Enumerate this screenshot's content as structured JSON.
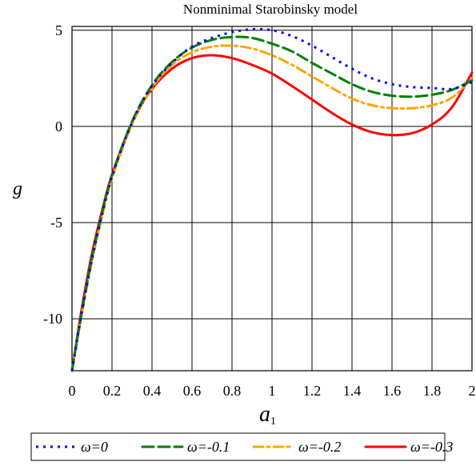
{
  "chart_data": {
    "type": "line",
    "title": "Nonminimal Starobinsky model",
    "xlabel": "a",
    "xlabel_subscript": "1",
    "ylabel": "g",
    "xlim": [
      0,
      2
    ],
    "ylim": [
      -12.7,
      5.2
    ],
    "x_ticks": [
      0,
      0.2,
      0.4,
      0.6,
      0.8,
      1,
      1.2,
      1.4,
      1.6,
      1.8,
      2
    ],
    "x_tick_labels": [
      "0",
      "0.2",
      "0.4",
      "0.6",
      "0.8",
      "1",
      "1.2",
      "1.4",
      "1.6",
      "1.8",
      "2"
    ],
    "y_ticks": [
      5,
      0,
      -5,
      -10
    ],
    "y_tick_labels": [
      "5",
      "0",
      "-5",
      "-10"
    ],
    "grid": true,
    "legend_position": "bottom",
    "x": [
      0,
      0.05,
      0.1,
      0.15,
      0.2,
      0.3,
      0.4,
      0.5,
      0.6,
      0.7,
      0.8,
      0.9,
      1.0,
      1.1,
      1.2,
      1.3,
      1.4,
      1.5,
      1.6,
      1.7,
      1.8,
      1.9,
      2.0
    ],
    "series": [
      {
        "name": "ω=0",
        "color": "#0000ff",
        "style": "dotted",
        "values": [
          -12.7,
          -9.6,
          -6.9,
          -4.6,
          -2.6,
          0.2,
          2.1,
          3.3,
          4.15,
          4.6,
          4.9,
          5.05,
          5.0,
          4.7,
          4.2,
          3.6,
          3.0,
          2.5,
          2.2,
          2.05,
          2.0,
          1.95,
          2.3
        ]
      },
      {
        "name": "ω=-0.1",
        "color": "#008000",
        "style": "dashed",
        "values": [
          -12.7,
          -9.6,
          -6.8,
          -4.5,
          -2.55,
          0.25,
          2.15,
          3.35,
          4.1,
          4.5,
          4.65,
          4.6,
          4.3,
          3.9,
          3.3,
          2.75,
          2.2,
          1.8,
          1.6,
          1.55,
          1.65,
          1.9,
          2.4
        ]
      },
      {
        "name": "ω=-0.2",
        "color": "#ffa500",
        "style": "dashdot",
        "values": [
          -12.7,
          -9.7,
          -7.0,
          -4.7,
          -2.7,
          0.1,
          2.0,
          3.2,
          3.85,
          4.15,
          4.2,
          4.05,
          3.7,
          3.2,
          2.6,
          2.0,
          1.45,
          1.1,
          0.95,
          0.95,
          1.1,
          1.5,
          2.5
        ]
      },
      {
        "name": "ω=-0.3",
        "color": "#ff0000",
        "style": "solid",
        "values": [
          -12.7,
          -9.4,
          -6.6,
          -4.4,
          -2.5,
          0.2,
          1.95,
          3.0,
          3.55,
          3.7,
          3.55,
          3.2,
          2.75,
          2.1,
          1.4,
          0.7,
          0.1,
          -0.3,
          -0.45,
          -0.35,
          0.1,
          1.0,
          2.8
        ]
      }
    ]
  }
}
